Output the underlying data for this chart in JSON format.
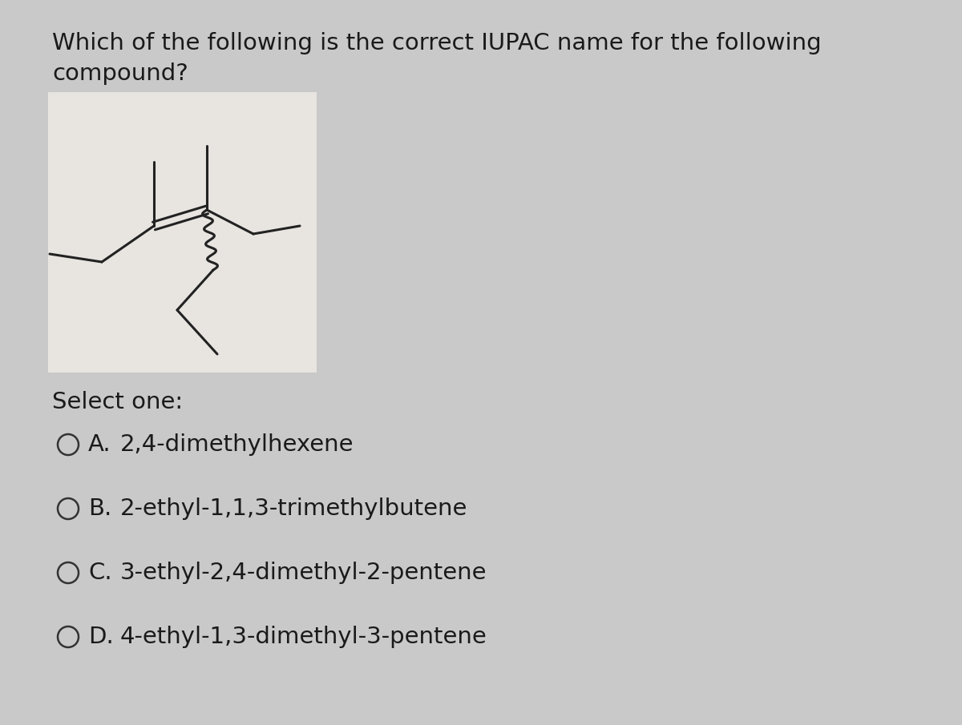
{
  "background_color": "#c9c9c9",
  "box_color": "#e8e5e1",
  "question_text_line1": "Which of the following is the correct IUPAC name for the following",
  "question_text_line2": "compound?",
  "select_one_text": "Select one:",
  "options": [
    {
      "label": "A.",
      "text": "2,4-dimethylhexene"
    },
    {
      "label": "B.",
      "text": "2-ethyl-1,1,3-trimethylbutene"
    },
    {
      "label": "C.",
      "text": "3-ethyl-2,4-dimethyl-2-pentene"
    },
    {
      "label": "D.",
      "text": "4-ethyl-1,3-dimethyl-3-pentene"
    }
  ],
  "font_size_question": 21,
  "font_size_options": 21,
  "font_size_select": 21,
  "text_color": "#1a1a1a",
  "circle_color": "#333333",
  "line_color": "#222222",
  "line_width": 2.2
}
